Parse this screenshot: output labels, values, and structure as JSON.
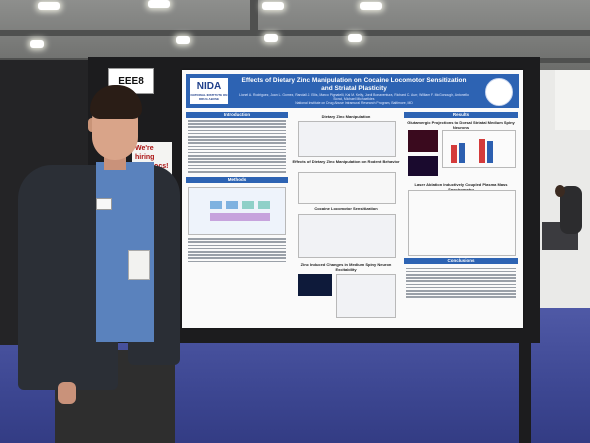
{
  "scene": {
    "booth_sign": "EEE8",
    "hiring_card": "We're hiring postdocs!"
  },
  "poster": {
    "logo": "NIDA",
    "logo_sub": "NATIONAL INSTITUTE ON DRUG ABUSE",
    "title": "Effects of Dietary Zinc Manipulation on Cocaine Locomotor Sensitization and Striatal Plasticity",
    "authors": "Lionel A. Rodriguez, Juan L. Gomez, Randall J. Ellis, Marco Pignatelli, Kai M. Kelly, Jordi Bonaventura, Richard C. Aurr, William F. McGonough, Antonello Bonci, Michael Michaelides",
    "affiliation": "National Institute on Drug Abuse Intramural Research Program, Baltimore, MD",
    "sections": {
      "introduction": "Introduction",
      "methods": "Methods",
      "results": "Results",
      "conclusions": "Conclusions"
    },
    "figures": {
      "zinc_manipulation": "Dietary Zinc Manipulation",
      "rodent_behavior": "Effects of Dietary Zinc Manipulation on Rodent Behavior",
      "cocaine_sensitization": "Cocaine Locomotor Sensitization",
      "zinc_msn": "Zinc Induced Changes in Medium Spiny Neuron Excitability",
      "dopamine_projections": "Glutamergic Projections to Dorsal Striatal Medium Spiny Neurons",
      "laser_ablation": "Laser Ablation Inductively Coupled Plasma Mass Spectrometry"
    },
    "colors": {
      "header": "#2d63b3",
      "background": "#fafafa"
    }
  }
}
